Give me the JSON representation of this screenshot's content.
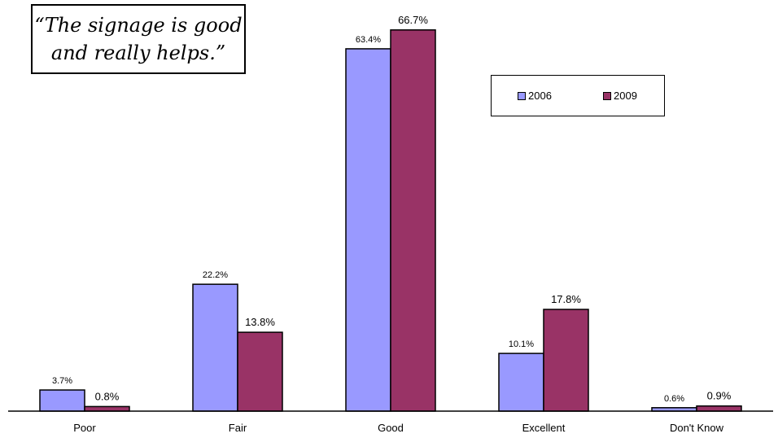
{
  "quote": {
    "text": "“The signage is good\nand really helps.”"
  },
  "colors": {
    "series_2006": "#9999ff",
    "series_2009": "#993366",
    "axis": "#000000",
    "border": "#000000"
  },
  "legend": {
    "position": "top-right",
    "items": [
      {
        "label": "2006"
      },
      {
        "label": "2009"
      }
    ]
  },
  "chart_data": {
    "type": "bar",
    "categories": [
      "Poor",
      "Fair",
      "Good",
      "Excellent",
      "Don't Know"
    ],
    "series": [
      {
        "name": "2006",
        "values": [
          3.7,
          22.2,
          63.4,
          10.1,
          0.6
        ],
        "labels": [
          "3.7%",
          "22.2%",
          "63.4%",
          "10.1%",
          "0.6%"
        ]
      },
      {
        "name": "2009",
        "values": [
          0.8,
          13.8,
          66.7,
          17.8,
          0.9
        ],
        "labels": [
          "0.8%",
          "13.8%",
          "66.7%",
          "17.8%",
          "0.9%"
        ]
      }
    ],
    "title": "",
    "xlabel": "",
    "ylabel": "",
    "ylim": [
      0,
      70
    ],
    "grid": false,
    "legend_position": "top-right"
  }
}
